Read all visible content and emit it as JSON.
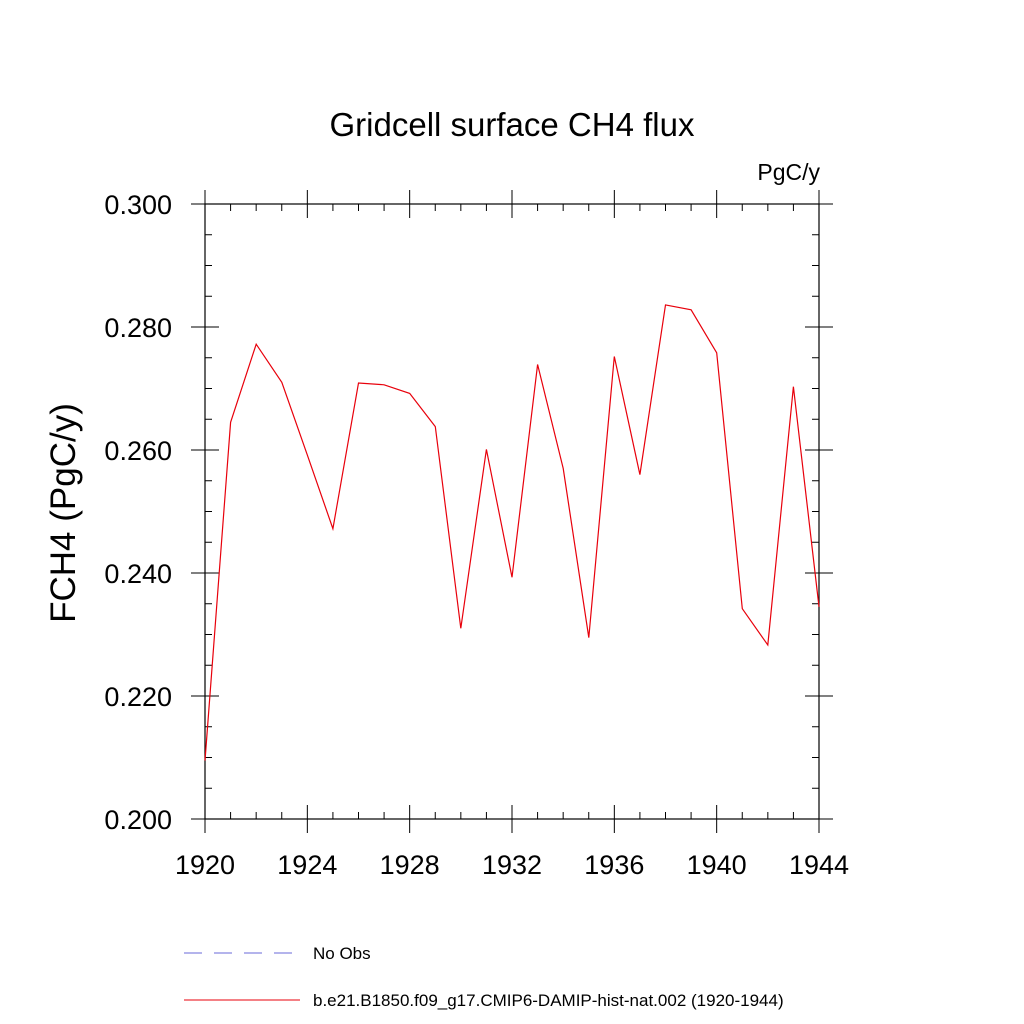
{
  "chart_data": {
    "type": "line",
    "title": "Gridcell surface CH4 flux",
    "units_label": "PgC/y",
    "ylabel": "FCH4  (PgC/y)",
    "xlabel": "",
    "xlim": [
      1920,
      1944
    ],
    "ylim": [
      0.2,
      0.3
    ],
    "x_ticks": [
      1920,
      1924,
      1928,
      1932,
      1936,
      1940,
      1944
    ],
    "x_tick_labels": [
      "1920",
      "1924",
      "1928",
      "1932",
      "1936",
      "1940",
      "1944"
    ],
    "x_minor_step": 1,
    "y_ticks": [
      0.2,
      0.22,
      0.24,
      0.26,
      0.28,
      0.3
    ],
    "y_tick_labels": [
      "0.200",
      "0.220",
      "0.240",
      "0.260",
      "0.280",
      "0.300"
    ],
    "y_minor_step": 0.005,
    "grid": false,
    "legend_position": "bottom",
    "series": [
      {
        "name": "No Obs",
        "color": "#6a6ad8",
        "dash": "dashed",
        "x": [],
        "values": []
      },
      {
        "name": "b.e21.B1850.f09_g17.CMIP6-DAMIP-hist-nat.002 (1920-1944)",
        "color": "#e8000b",
        "dash": "solid",
        "x": [
          1920,
          1921,
          1922,
          1923,
          1924,
          1925,
          1926,
          1927,
          1928,
          1929,
          1930,
          1931,
          1932,
          1933,
          1934,
          1935,
          1936,
          1937,
          1938,
          1939,
          1940,
          1941,
          1942,
          1943,
          1944
        ],
        "values": [
          0.2095,
          0.2645,
          0.2772,
          0.271,
          0.2592,
          0.2472,
          0.2709,
          0.2706,
          0.2692,
          0.2638,
          0.231,
          0.2601,
          0.2393,
          0.2739,
          0.257,
          0.2295,
          0.2752,
          0.256,
          0.2836,
          0.2828,
          0.2758,
          0.2342,
          0.2283,
          0.2703,
          0.2345
        ]
      }
    ]
  }
}
